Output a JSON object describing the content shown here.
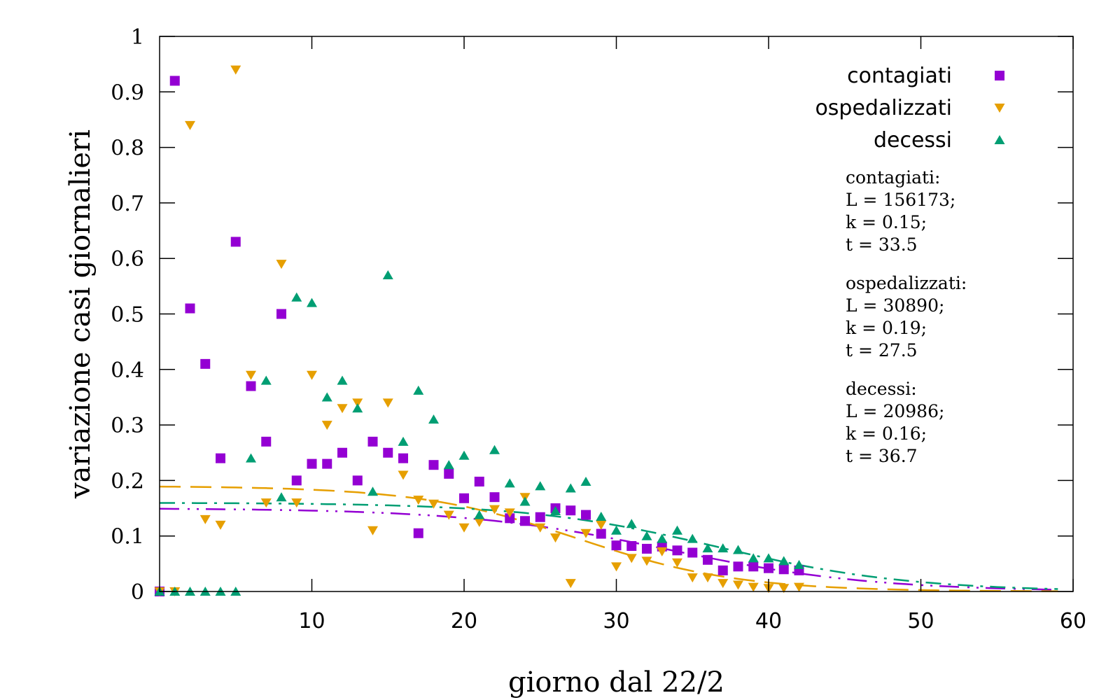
{
  "chart_data": {
    "type": "scatter",
    "title": "",
    "xlabel": "giorno dal 22/2",
    "ylabel": "variazione casi giornalieri",
    "xlim": [
      0,
      60
    ],
    "ylim": [
      0,
      1
    ],
    "xticks": [
      10,
      20,
      30,
      40,
      50,
      60
    ],
    "yticks": [
      0,
      0.1,
      0.2,
      0.3,
      0.4,
      0.5,
      0.6,
      0.7,
      0.8,
      0.9,
      1
    ],
    "grid": false,
    "legend": "top-right",
    "series": [
      {
        "name": "contagiati",
        "color": "#9400d3",
        "marker": "square",
        "x": [
          0,
          1,
          2,
          3,
          4,
          5,
          6,
          7,
          8,
          9,
          10,
          11,
          12,
          13,
          14,
          15,
          16,
          17,
          18,
          19,
          20,
          21,
          22,
          23,
          24,
          25,
          26,
          27,
          28,
          29,
          30,
          31,
          32,
          33,
          34,
          35,
          36,
          37,
          38,
          39,
          40,
          41,
          42
        ],
        "y": [
          0,
          0.92,
          0.51,
          0.41,
          0.24,
          0.63,
          0.37,
          0.27,
          0.5,
          0.2,
          0.23,
          0.23,
          0.25,
          0.2,
          0.27,
          0.25,
          0.24,
          0.105,
          0.228,
          0.212,
          0.168,
          0.198,
          0.17,
          0.132,
          0.127,
          0.134,
          0.15,
          0.146,
          0.138,
          0.104,
          0.083,
          0.082,
          0.077,
          0.081,
          0.074,
          0.07,
          0.057,
          0.038,
          0.045,
          0.045,
          0.042,
          0.04,
          0.038
        ]
      },
      {
        "name": "ospedalizzati",
        "color": "#e69f00",
        "marker": "triangle-down",
        "x": [
          0,
          1,
          2,
          3,
          4,
          5,
          6,
          7,
          8,
          9,
          10,
          11,
          12,
          13,
          14,
          15,
          16,
          17,
          18,
          19,
          20,
          21,
          22,
          23,
          24,
          25,
          26,
          27,
          28,
          29,
          30,
          31,
          32,
          33,
          34,
          35,
          36,
          37,
          38,
          39,
          40,
          41,
          42
        ],
        "y": [
          0,
          0,
          0.84,
          0.13,
          0.12,
          0.94,
          0.39,
          0.16,
          0.59,
          0.16,
          0.39,
          0.3,
          0.33,
          0.34,
          0.11,
          0.34,
          0.21,
          0.165,
          0.158,
          0.138,
          0.115,
          0.125,
          0.148,
          0.142,
          0.17,
          0.115,
          0.097,
          0.015,
          0.105,
          0.12,
          0.045,
          0.06,
          0.055,
          0.072,
          0.052,
          0.025,
          0.025,
          0.015,
          0.012,
          0.008,
          0.006,
          0.006,
          0.008
        ]
      },
      {
        "name": "decessi",
        "color": "#009e73",
        "marker": "triangle-up",
        "x": [
          0,
          1,
          2,
          3,
          4,
          5,
          6,
          7,
          8,
          9,
          10,
          11,
          12,
          13,
          14,
          15,
          16,
          17,
          18,
          19,
          20,
          21,
          22,
          23,
          24,
          25,
          26,
          27,
          28,
          29,
          30,
          31,
          32,
          33,
          34,
          35,
          36,
          37,
          38,
          39,
          40,
          41,
          42
        ],
        "y": [
          0,
          0,
          0,
          0,
          0,
          0,
          0.24,
          0.38,
          0.17,
          0.53,
          0.52,
          0.35,
          0.38,
          0.33,
          0.18,
          0.57,
          0.27,
          0.362,
          0.31,
          0.228,
          0.245,
          0.138,
          0.255,
          0.195,
          0.162,
          0.19,
          0.145,
          0.186,
          0.198,
          0.135,
          0.11,
          0.122,
          0.1,
          0.095,
          0.11,
          0.095,
          0.078,
          0.078,
          0.075,
          0.06,
          0.06,
          0.055,
          0.048
        ]
      }
    ],
    "fits": [
      {
        "series": "contagiati",
        "color": "#9400d3",
        "L": 156173,
        "k": 0.15,
        "t": 33.5,
        "x_end": 59
      },
      {
        "series": "ospedalizzati",
        "color": "#e69f00",
        "L": 30890,
        "k": 0.19,
        "t": 27.5,
        "x_end": 59
      },
      {
        "series": "decessi",
        "color": "#009e73",
        "L": 20986,
        "k": 0.16,
        "t": 36.7,
        "x_end": 59
      }
    ],
    "annotations": [
      {
        "title": "contagiati:",
        "lines": [
          "L = 156173;",
          "k = 0.15;",
          "t = 33.5"
        ]
      },
      {
        "title": "ospedalizzati:",
        "lines": [
          "L = 30890;",
          "k = 0.19;",
          "t = 27.5"
        ]
      },
      {
        "title": "decessi:",
        "lines": [
          "L = 20986;",
          "k = 0.16;",
          "t = 36.7"
        ]
      }
    ]
  }
}
